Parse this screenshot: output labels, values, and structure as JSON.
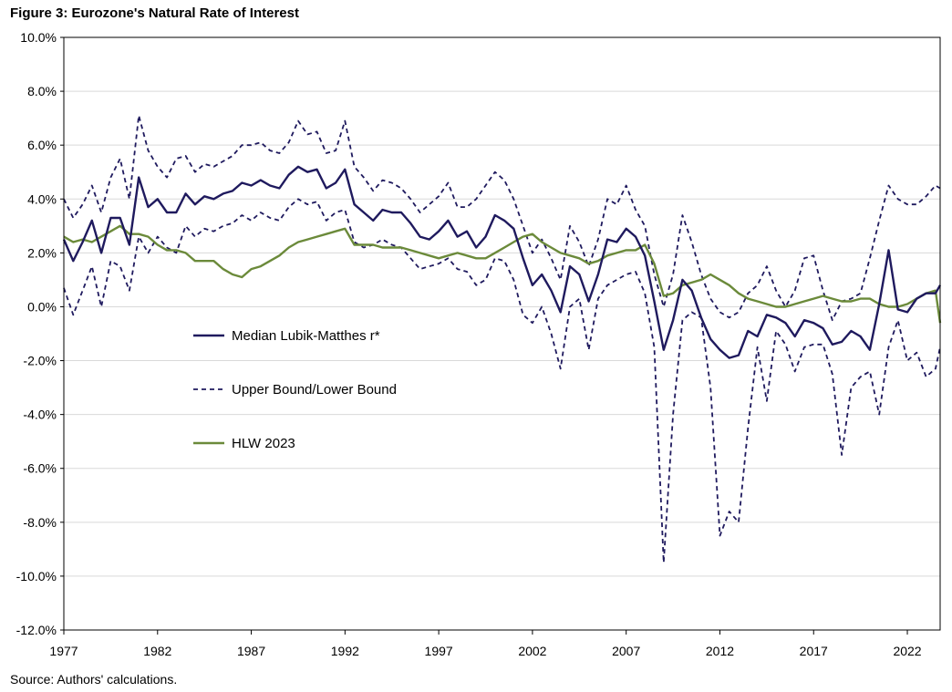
{
  "figure": {
    "title": "Figure 3: Eurozone's Natural Rate of Interest",
    "source": "Source: Authors' calculations."
  },
  "chart_data": {
    "type": "line",
    "title": "Figure 3: Eurozone's Natural Rate of Interest",
    "xlabel": "",
    "ylabel": "",
    "xlim": [
      1977,
      2023.75
    ],
    "ylim": [
      -12,
      10
    ],
    "y_ticks": [
      10,
      8,
      6,
      4,
      2,
      0,
      -2,
      -4,
      -6,
      -8,
      -10,
      -12
    ],
    "y_tick_labels": [
      "10.0%",
      "8.0%",
      "6.0%",
      "4.0%",
      "2.0%",
      "0.0%",
      "-2.0%",
      "-4.0%",
      "-6.0%",
      "-8.0%",
      "-10.0%",
      "-12.0%"
    ],
    "x_ticks": [
      1977,
      1982,
      1987,
      1992,
      1997,
      2002,
      2007,
      2012,
      2017,
      2022
    ],
    "x_tick_labels": [
      "1977",
      "1982",
      "1987",
      "1992",
      "1997",
      "2002",
      "2007",
      "2012",
      "2017",
      "2022"
    ],
    "grid": true,
    "legend_position": "center-left",
    "colors": {
      "navy": "#1f1a5e",
      "olive": "#6b8a3a",
      "grid": "#d9d9d9"
    },
    "series": [
      {
        "name": "Median Lubik-Matthes r*",
        "legend_label": "Median Lubik-Matthes r*",
        "color": "#1f1a5e",
        "style": "solid",
        "x": [
          1977,
          1977.5,
          1978,
          1978.5,
          1979,
          1979.5,
          1980,
          1980.5,
          1981,
          1981.5,
          1982,
          1982.5,
          1983,
          1983.5,
          1984,
          1984.5,
          1985,
          1985.5,
          1986,
          1986.5,
          1987,
          1987.5,
          1988,
          1988.5,
          1989,
          1989.5,
          1990,
          1990.5,
          1991,
          1991.5,
          1992,
          1992.5,
          1993,
          1993.5,
          1994,
          1994.5,
          1995,
          1995.5,
          1996,
          1996.5,
          1997,
          1997.5,
          1998,
          1998.5,
          1999,
          1999.5,
          2000,
          2000.5,
          2001,
          2001.5,
          2002,
          2002.5,
          2003,
          2003.5,
          2004,
          2004.5,
          2005,
          2005.5,
          2006,
          2006.5,
          2007,
          2007.5,
          2008,
          2008.5,
          2009,
          2009.5,
          2010,
          2010.5,
          2011,
          2011.5,
          2012,
          2012.5,
          2013,
          2013.5,
          2014,
          2014.5,
          2015,
          2015.5,
          2016,
          2016.5,
          2017,
          2017.5,
          2018,
          2018.5,
          2019,
          2019.5,
          2020,
          2020.5,
          2021,
          2021.5,
          2022,
          2022.5,
          2023,
          2023.5,
          2023.75
        ],
        "values": [
          2.5,
          1.7,
          2.4,
          3.2,
          2.0,
          3.3,
          3.3,
          2.3,
          4.8,
          3.7,
          4.0,
          3.5,
          3.5,
          4.2,
          3.8,
          4.1,
          4.0,
          4.2,
          4.3,
          4.6,
          4.5,
          4.7,
          4.5,
          4.4,
          4.9,
          5.2,
          5.0,
          5.1,
          4.4,
          4.6,
          5.1,
          3.8,
          3.5,
          3.2,
          3.6,
          3.5,
          3.5,
          3.1,
          2.6,
          2.5,
          2.8,
          3.2,
          2.6,
          2.8,
          2.2,
          2.6,
          3.4,
          3.2,
          2.9,
          1.8,
          0.8,
          1.2,
          0.6,
          -0.2,
          1.5,
          1.2,
          0.2,
          1.2,
          2.5,
          2.4,
          2.9,
          2.6,
          1.9,
          0.2,
          -1.6,
          -0.5,
          1.0,
          0.6,
          -0.4,
          -1.2,
          -1.6,
          -1.9,
          -1.8,
          -0.9,
          -1.1,
          -0.3,
          -0.4,
          -0.6,
          -1.1,
          -0.5,
          -0.6,
          -0.8,
          -1.4,
          -1.3,
          -0.9,
          -1.1,
          -1.6,
          0.1,
          2.1,
          -0.1,
          -0.2,
          0.3,
          0.5,
          0.5,
          0.8
        ]
      },
      {
        "name": "Upper Bound",
        "legend_label": "Upper Bound/Lower Bound",
        "color": "#1f1a5e",
        "style": "dashed",
        "x": [
          1977,
          1977.5,
          1978,
          1978.5,
          1979,
          1979.5,
          1980,
          1980.5,
          1981,
          1981.5,
          1982,
          1982.5,
          1983,
          1983.5,
          1984,
          1984.5,
          1985,
          1985.5,
          1986,
          1986.5,
          1987,
          1987.5,
          1988,
          1988.5,
          1989,
          1989.5,
          1990,
          1990.5,
          1991,
          1991.5,
          1992,
          1992.5,
          1993,
          1993.5,
          1994,
          1994.5,
          1995,
          1995.5,
          1996,
          1996.5,
          1997,
          1997.5,
          1998,
          1998.5,
          1999,
          1999.5,
          2000,
          2000.5,
          2001,
          2001.5,
          2002,
          2002.5,
          2003,
          2003.5,
          2004,
          2004.5,
          2005,
          2005.5,
          2006,
          2006.5,
          2007,
          2007.5,
          2008,
          2008.5,
          2009,
          2009.5,
          2010,
          2010.5,
          2011,
          2011.5,
          2012,
          2012.5,
          2013,
          2013.5,
          2014,
          2014.5,
          2015,
          2015.5,
          2016,
          2016.5,
          2017,
          2017.5,
          2018,
          2018.5,
          2019,
          2019.5,
          2020,
          2020.5,
          2021,
          2021.5,
          2022,
          2022.5,
          2023,
          2023.5,
          2023.75
        ],
        "values": [
          4.0,
          3.3,
          3.8,
          4.5,
          3.5,
          4.8,
          5.5,
          4.0,
          7.1,
          5.8,
          5.2,
          4.8,
          5.5,
          5.6,
          5.0,
          5.3,
          5.2,
          5.4,
          5.6,
          6.0,
          6.0,
          6.1,
          5.8,
          5.7,
          6.1,
          6.9,
          6.4,
          6.5,
          5.7,
          5.8,
          6.9,
          5.2,
          4.8,
          4.3,
          4.7,
          4.6,
          4.4,
          4.0,
          3.5,
          3.8,
          4.1,
          4.6,
          3.7,
          3.7,
          4.0,
          4.5,
          5.0,
          4.7,
          4.0,
          3.0,
          2.0,
          2.5,
          1.8,
          1.0,
          3.0,
          2.4,
          1.5,
          2.5,
          4.0,
          3.8,
          4.5,
          3.6,
          3.0,
          1.2,
          0.0,
          1.2,
          3.4,
          2.4,
          1.2,
          0.3,
          -0.2,
          -0.4,
          -0.2,
          0.5,
          0.8,
          1.5,
          0.6,
          0.0,
          0.6,
          1.8,
          1.9,
          0.6,
          -0.5,
          0.2,
          0.3,
          0.5,
          1.8,
          3.2,
          4.5,
          4.0,
          3.8,
          3.8,
          4.1,
          4.5,
          4.4
        ]
      },
      {
        "name": "Lower Bound",
        "legend_label": "Upper Bound/Lower Bound",
        "color": "#1f1a5e",
        "style": "dashed",
        "x": [
          1977,
          1977.5,
          1978,
          1978.5,
          1979,
          1979.5,
          1980,
          1980.5,
          1981,
          1981.5,
          1982,
          1982.5,
          1983,
          1983.5,
          1984,
          1984.5,
          1985,
          1985.5,
          1986,
          1986.5,
          1987,
          1987.5,
          1988,
          1988.5,
          1989,
          1989.5,
          1990,
          1990.5,
          1991,
          1991.5,
          1992,
          1992.5,
          1993,
          1993.5,
          1994,
          1994.5,
          1995,
          1995.5,
          1996,
          1996.5,
          1997,
          1997.5,
          1998,
          1998.5,
          1999,
          1999.5,
          2000,
          2000.5,
          2001,
          2001.5,
          2002,
          2002.5,
          2003,
          2003.5,
          2004,
          2004.5,
          2005,
          2005.5,
          2006,
          2006.5,
          2007,
          2007.5,
          2008,
          2008.5,
          2009,
          2009.5,
          2010,
          2010.5,
          2011,
          2011.5,
          2012,
          2012.5,
          2013,
          2013.5,
          2014,
          2014.5,
          2015,
          2015.5,
          2016,
          2016.5,
          2017,
          2017.5,
          2018,
          2018.5,
          2019,
          2019.5,
          2020,
          2020.5,
          2021,
          2021.5,
          2022,
          2022.5,
          2023,
          2023.5,
          2023.75
        ],
        "values": [
          0.7,
          -0.3,
          0.6,
          1.5,
          0.0,
          1.7,
          1.5,
          0.6,
          2.6,
          2.0,
          2.6,
          2.2,
          2.0,
          3.0,
          2.6,
          2.9,
          2.8,
          3.0,
          3.1,
          3.4,
          3.2,
          3.5,
          3.3,
          3.2,
          3.7,
          4.0,
          3.8,
          3.9,
          3.2,
          3.5,
          3.6,
          2.4,
          2.2,
          2.3,
          2.5,
          2.3,
          2.2,
          1.8,
          1.4,
          1.5,
          1.6,
          1.8,
          1.4,
          1.3,
          0.8,
          1.0,
          1.8,
          1.7,
          1.0,
          -0.3,
          -0.6,
          0.0,
          -1.0,
          -2.3,
          0.0,
          0.3,
          -1.6,
          0.3,
          0.8,
          1.0,
          1.2,
          1.3,
          0.5,
          -1.5,
          -9.5,
          -4.0,
          -0.5,
          -0.2,
          -0.4,
          -3.0,
          -8.5,
          -7.6,
          -8.0,
          -4.5,
          -1.5,
          -3.5,
          -0.9,
          -1.4,
          -2.4,
          -1.5,
          -1.4,
          -1.4,
          -2.5,
          -5.5,
          -3.0,
          -2.6,
          -2.4,
          -4.0,
          -1.5,
          -0.5,
          -2.0,
          -1.7,
          -2.6,
          -2.3,
          -1.5
        ]
      },
      {
        "name": "HLW 2023",
        "legend_label": "HLW 2023",
        "color": "#6b8a3a",
        "style": "solid",
        "x": [
          1977,
          1977.5,
          1978,
          1978.5,
          1979,
          1979.5,
          1980,
          1980.5,
          1981,
          1981.5,
          1982,
          1982.5,
          1983,
          1983.5,
          1984,
          1984.5,
          1985,
          1985.5,
          1986,
          1986.5,
          1987,
          1987.5,
          1988,
          1988.5,
          1989,
          1989.5,
          1990,
          1990.5,
          1991,
          1991.5,
          1992,
          1992.5,
          1993,
          1993.5,
          1994,
          1994.5,
          1995,
          1995.5,
          1996,
          1996.5,
          1997,
          1997.5,
          1998,
          1998.5,
          1999,
          1999.5,
          2000,
          2000.5,
          2001,
          2001.5,
          2002,
          2002.5,
          2003,
          2003.5,
          2004,
          2004.5,
          2005,
          2005.5,
          2006,
          2006.5,
          2007,
          2007.5,
          2008,
          2008.5,
          2009,
          2009.5,
          2010,
          2010.5,
          2011,
          2011.5,
          2012,
          2012.5,
          2013,
          2013.5,
          2014,
          2014.5,
          2015,
          2015.5,
          2016,
          2016.5,
          2017,
          2017.5,
          2018,
          2018.5,
          2019,
          2019.5,
          2020,
          2020.5,
          2021,
          2021.5,
          2022,
          2022.5,
          2023,
          2023.5,
          2023.75
        ],
        "values": [
          2.6,
          2.4,
          2.5,
          2.4,
          2.6,
          2.8,
          3.0,
          2.7,
          2.7,
          2.6,
          2.3,
          2.1,
          2.1,
          2.0,
          1.7,
          1.7,
          1.7,
          1.4,
          1.2,
          1.1,
          1.4,
          1.5,
          1.7,
          1.9,
          2.2,
          2.4,
          2.5,
          2.6,
          2.7,
          2.8,
          2.9,
          2.3,
          2.3,
          2.3,
          2.2,
          2.2,
          2.2,
          2.1,
          2.0,
          1.9,
          1.8,
          1.9,
          2.0,
          1.9,
          1.8,
          1.8,
          2.0,
          2.2,
          2.4,
          2.6,
          2.7,
          2.4,
          2.2,
          2.0,
          1.9,
          1.8,
          1.6,
          1.7,
          1.9,
          2.0,
          2.1,
          2.1,
          2.3,
          1.6,
          0.4,
          0.5,
          0.8,
          0.9,
          1.0,
          1.2,
          1.0,
          0.8,
          0.5,
          0.3,
          0.2,
          0.1,
          0.0,
          0.0,
          0.1,
          0.2,
          0.3,
          0.4,
          0.3,
          0.2,
          0.2,
          0.3,
          0.3,
          0.1,
          0.0,
          0.0,
          0.1,
          0.3,
          0.5,
          0.6,
          -0.6
        ]
      }
    ],
    "legend": [
      {
        "label": "Median Lubik-Matthes r*",
        "color": "#1f1a5e",
        "style": "solid"
      },
      {
        "label": "Upper Bound/Lower Bound",
        "color": "#1f1a5e",
        "style": "dashed"
      },
      {
        "label": "HLW 2023",
        "color": "#6b8a3a",
        "style": "solid"
      }
    ]
  }
}
